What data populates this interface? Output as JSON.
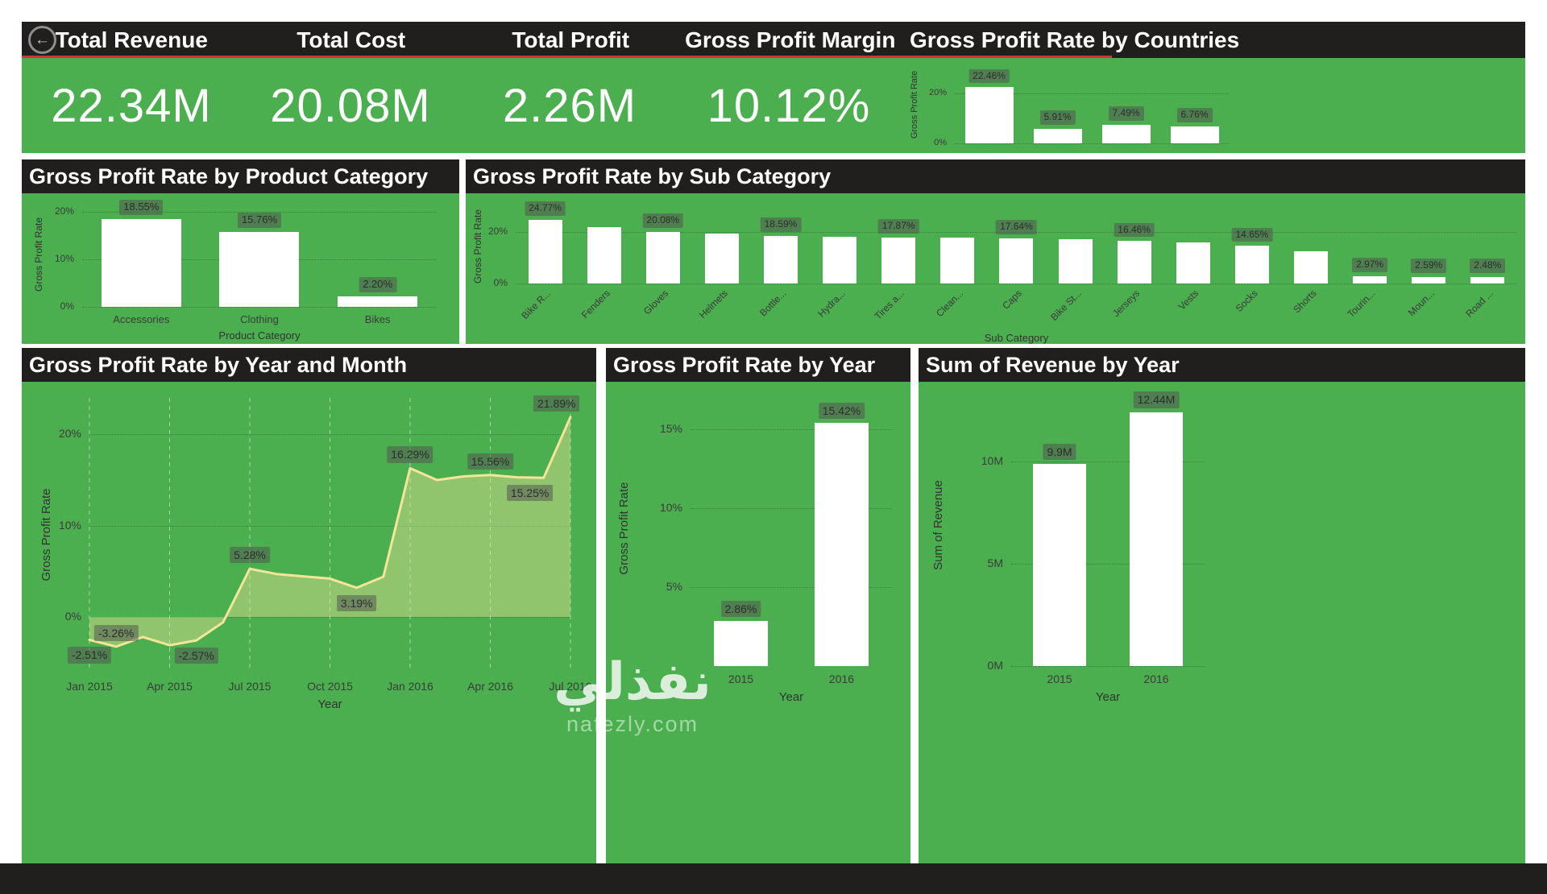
{
  "colors": {
    "green": "#4BAE4F",
    "dark": "#211F1E",
    "accent_red": "#D13438",
    "bar_fill": "#FFFFFF",
    "line": "#F4E59A",
    "area_fill": "rgba(243,229,152,0.42)"
  },
  "icons": {
    "back": "←"
  },
  "kpis": [
    {
      "label": "Total Revenue",
      "value": "22.34M"
    },
    {
      "label": "Total Cost",
      "value": "20.08M"
    },
    {
      "label": "Total Profit",
      "value": "2.26M"
    },
    {
      "label": "Gross Profit Margin",
      "value": "10.12%"
    }
  ],
  "watermark": {
    "arabic": "نفذلي",
    "domain": "nafezly.com"
  },
  "chart_data": [
    {
      "id": "countries",
      "type": "bar",
      "title": "Gross Profit Rate by Countries",
      "ylabel": "Gross Profit Rate",
      "ylim": [
        0,
        31
      ],
      "yticks": [
        {
          "v": 0,
          "label": "0%"
        },
        {
          "v": 20,
          "label": "20%"
        }
      ],
      "categories": [
        "",
        "",
        "",
        ""
      ],
      "values": [
        22.46,
        5.91,
        7.49,
        6.76
      ],
      "bar_labels": [
        "22.46%",
        "5.91%",
        "7.49%",
        "6.76%"
      ]
    },
    {
      "id": "product-category",
      "type": "bar",
      "title": "Gross Profit Rate by Product Category",
      "ylabel": "Gross Profit Rate",
      "xlabel": "Product Category",
      "ylim": [
        0,
        22.03
      ],
      "yticks": [
        {
          "v": 0,
          "label": "0%"
        },
        {
          "v": 10,
          "label": "10%"
        },
        {
          "v": 20,
          "label": "20%"
        }
      ],
      "categories": [
        "Accessories",
        "Clothing",
        "Bikes"
      ],
      "values": [
        18.55,
        15.76,
        2.2
      ],
      "bar_labels": [
        "18.55%",
        "15.76%",
        "2.20%"
      ]
    },
    {
      "id": "sub-category",
      "type": "bar",
      "title": "Gross Profit Rate by Sub Category",
      "ylabel": "Gross Profit Rate",
      "xlabel": "Sub Category",
      "ylim": [
        0,
        28.75
      ],
      "yticks": [
        {
          "v": 0,
          "label": "0%"
        },
        {
          "v": 20,
          "label": "20%"
        }
      ],
      "categories": [
        "Bike R...",
        "Fenders",
        "Gloves",
        "Helmets",
        "Bottle...",
        "Hydra...",
        "Tires a...",
        "Clean...",
        "Caps",
        "Bike St...",
        "Jerseys",
        "Vests",
        "Socks",
        "Shorts",
        "Tourin...",
        "Moun...",
        "Road ..."
      ],
      "values": [
        24.77,
        21.9,
        20.08,
        19.35,
        18.59,
        18.17,
        17.87,
        17.71,
        17.64,
        17.16,
        16.46,
        15.9,
        14.65,
        12.41,
        2.97,
        2.59,
        2.48
      ],
      "bar_labels": [
        "24.77%",
        null,
        "20.08%",
        null,
        "18.59%",
        null,
        "17.87%",
        null,
        "17.64%",
        null,
        "16.46%",
        null,
        "14.65%",
        null,
        "2.97%",
        "2.59%",
        "2.48%"
      ]
    },
    {
      "id": "year-month",
      "type": "area",
      "title": "Gross Profit Rate by Year and Month",
      "ylabel": "Gross Profit Rate",
      "xlabel": "Year",
      "ylim": [
        -6,
        24
      ],
      "yticks": [
        {
          "v": 0,
          "label": "0%"
        },
        {
          "v": 10,
          "label": "10%"
        },
        {
          "v": 20,
          "label": "20%"
        }
      ],
      "x": [
        "Jan 2015",
        "Feb 2015",
        "Mar 2015",
        "Apr 2015",
        "May 2015",
        "Jun 2015",
        "Jul 2015",
        "Aug 2015",
        "Sep 2015",
        "Oct 2015",
        "Nov 2015",
        "Dec 2015",
        "Jan 2016",
        "Feb 2016",
        "Mar 2016",
        "Apr 2016",
        "May 2016",
        "Jun 2016",
        "Jul 2016"
      ],
      "xticks": [
        "Jan 2015",
        "Apr 2015",
        "Jul 2015",
        "Oct 2015",
        "Jan 2016",
        "Apr 2016",
        "Jul 2016"
      ],
      "values": [
        -2.51,
        -3.26,
        -2.2,
        -3.1,
        -2.57,
        -0.6,
        5.28,
        4.7,
        4.45,
        4.2,
        3.19,
        4.4,
        16.29,
        15.0,
        15.4,
        15.56,
        15.3,
        15.25,
        21.89
      ],
      "point_labels": [
        {
          "index": 0,
          "text": "-2.51%",
          "pos": "below"
        },
        {
          "index": 1,
          "text": "-3.26%",
          "pos": "above"
        },
        {
          "index": 4,
          "text": "-2.57%",
          "pos": "below"
        },
        {
          "index": 6,
          "text": "5.28%",
          "pos": "above"
        },
        {
          "index": 10,
          "text": "3.19%",
          "pos": "below"
        },
        {
          "index": 12,
          "text": "16.29%",
          "pos": "above"
        },
        {
          "index": 15,
          "text": "15.56%",
          "pos": "above"
        },
        {
          "index": 17,
          "text": "15.25%",
          "pos": "below"
        },
        {
          "index": 18,
          "text": "21.89%",
          "pos": "above"
        }
      ]
    },
    {
      "id": "year",
      "type": "bar",
      "title": "Gross Profit Rate by Year",
      "ylabel": "Gross Profit Rate",
      "xlabel": "Year",
      "ylim": [
        0,
        17.5
      ],
      "yticks": [
        {
          "v": 5,
          "label": "5%"
        },
        {
          "v": 10,
          "label": "10%"
        },
        {
          "v": 15,
          "label": "15%"
        }
      ],
      "categories": [
        "2015",
        "2016"
      ],
      "values": [
        2.86,
        15.42
      ],
      "bar_labels": [
        "2.86%",
        "15.42%"
      ]
    },
    {
      "id": "revenue-year",
      "type": "bar",
      "title": "Sum of Revenue by Year",
      "ylabel": "Sum of Revenue",
      "xlabel": "Year",
      "ylim": [
        0,
        13.8
      ],
      "yticks": [
        {
          "v": 0,
          "label": "0M"
        },
        {
          "v": 5,
          "label": "5M"
        },
        {
          "v": 10,
          "label": "10M"
        }
      ],
      "categories": [
        "2015",
        "2016"
      ],
      "values": [
        9.9,
        12.44
      ],
      "bar_labels": [
        "9.9M",
        "12.44M"
      ]
    }
  ]
}
